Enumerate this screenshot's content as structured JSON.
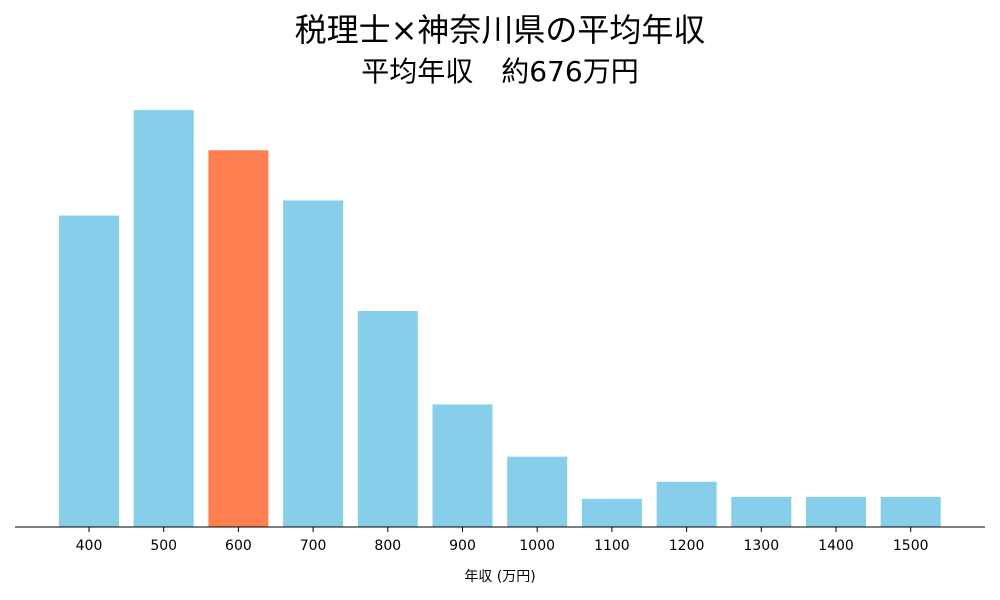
{
  "chart_data": {
    "type": "bar",
    "title": "税理士×神奈川県の平均年収",
    "subtitle": "平均年収　約676万円",
    "xlabel": "年収 (万円)",
    "ylabel": "",
    "categories": [
      "400",
      "500",
      "600",
      "700",
      "800",
      "900",
      "1000",
      "1100",
      "1200",
      "1300",
      "1400",
      "1500"
    ],
    "values": [
      31,
      41.5,
      37.5,
      32.5,
      21.5,
      12.2,
      7,
      2.8,
      4.5,
      3,
      3,
      3
    ],
    "ylim": [
      0,
      43
    ],
    "highlight_category": "600",
    "bar_color": "#87CEEB",
    "highlight_color": "#FF7F50",
    "grid": false,
    "legend": "none"
  }
}
